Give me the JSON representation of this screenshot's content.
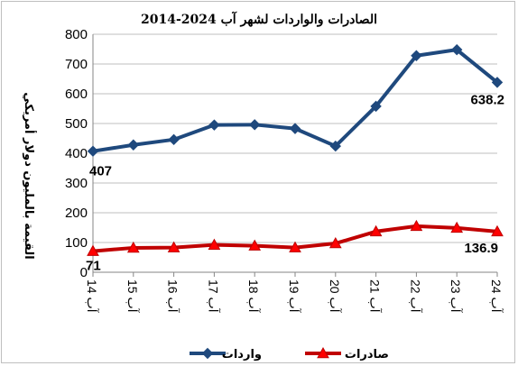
{
  "chart_data": {
    "type": "line",
    "title": "الصادرات والواردات لشهر آب 2024-2014",
    "ylabel": "القيمة بالمليون دولار أمريكي",
    "xlabel": "",
    "ylim": [
      0,
      800
    ],
    "yticks": [
      "0",
      "100",
      "200",
      "300",
      "400",
      "500",
      "600",
      "700",
      "800"
    ],
    "categories": [
      "آب 14",
      "آب 15",
      "آب 16",
      "آب 17",
      "آب 18",
      "آب 19",
      "آب 20",
      "آب 21",
      "آب 22",
      "آب 23",
      "آب 24"
    ],
    "grid": true,
    "legend_position": "bottom",
    "series": [
      {
        "name": "واردات",
        "color": "#1f497d",
        "marker": "diamond",
        "values": [
          407,
          428,
          446,
          495,
          496,
          483,
          424,
          558,
          728,
          748,
          638.2
        ],
        "labels": {
          "first": "407",
          "last": "638.2"
        }
      },
      {
        "name": "صادرات",
        "color": "#c00000",
        "marker_fill": "#ff0000",
        "marker": "triangle",
        "values": [
          71,
          82,
          83,
          92,
          89,
          83,
          97,
          137,
          155,
          149,
          136.9
        ],
        "labels": {
          "first": "71",
          "last": "136.9"
        }
      }
    ]
  }
}
